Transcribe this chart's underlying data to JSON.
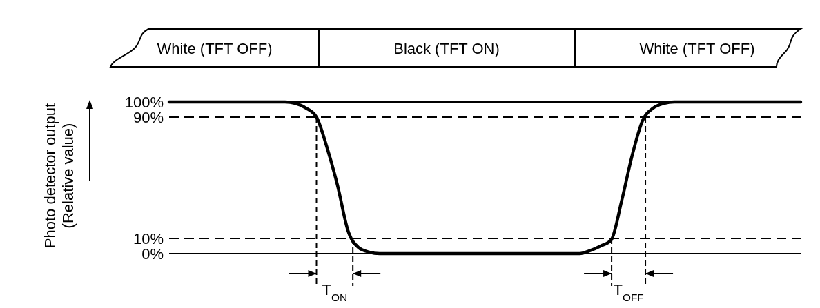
{
  "chart_data": {
    "type": "line",
    "ylabel": "Photo detector output\n(Relative value)",
    "categories": [
      null,
      null,
      null,
      null,
      null,
      null,
      null,
      null,
      null,
      null,
      null,
      null,
      null,
      null,
      null,
      null,
      null,
      null,
      null,
      null,
      null,
      null,
      null,
      null,
      null,
      null,
      null,
      null,
      null,
      null,
      null,
      null,
      null,
      null,
      null,
      null,
      null,
      null,
      null,
      null,
      null,
      null,
      null,
      null,
      null,
      null,
      null,
      null,
      null,
      null,
      null,
      null,
      null,
      null,
      null,
      null,
      null,
      null,
      null,
      null,
      null
    ],
    "series": [
      {
        "color": "#000000",
        "values": [
          100,
          100,
          100,
          100,
          100,
          100,
          100,
          100,
          100,
          100,
          100,
          100,
          99,
          96,
          90,
          70,
          45,
          15,
          4,
          1,
          0,
          0,
          0,
          0,
          0,
          0,
          0,
          0,
          0,
          0,
          0,
          0,
          0,
          0,
          0,
          0,
          0,
          0,
          0,
          0,
          2,
          5,
          9,
          35,
          65,
          88,
          96,
          99,
          100,
          100,
          100,
          100,
          100,
          100,
          100,
          100,
          100,
          100,
          100,
          100,
          100
        ]
      }
    ],
    "ylim": [
      0,
      100
    ],
    "yticks": [
      {
        "value": 0,
        "label": "0%"
      },
      {
        "value": 10,
        "label": "10%"
      },
      {
        "value": 90,
        "label": "90%"
      },
      {
        "value": 100,
        "label": "100%"
      }
    ],
    "tick_labels": "y",
    "grid": false,
    "marker": "none",
    "line_style": "solid",
    "ref_lines": [
      {
        "axis": "y",
        "value": 100,
        "line_style": "solid",
        "color": "#000000"
      },
      {
        "axis": "y",
        "value": 90,
        "line_style": "dashed",
        "color": "#000000"
      },
      {
        "axis": "y",
        "value": 10,
        "line_style": "dashed",
        "color": "#000000"
      },
      {
        "axis": "y",
        "value": 0,
        "line_style": "solid",
        "color": "#000000"
      }
    ],
    "annotations": [
      "White (TFT OFF)",
      "Black (TFT ON)",
      "White (TFT OFF)",
      "T$_{ON}$",
      "T$_{OFF}$"
    ]
  }
}
